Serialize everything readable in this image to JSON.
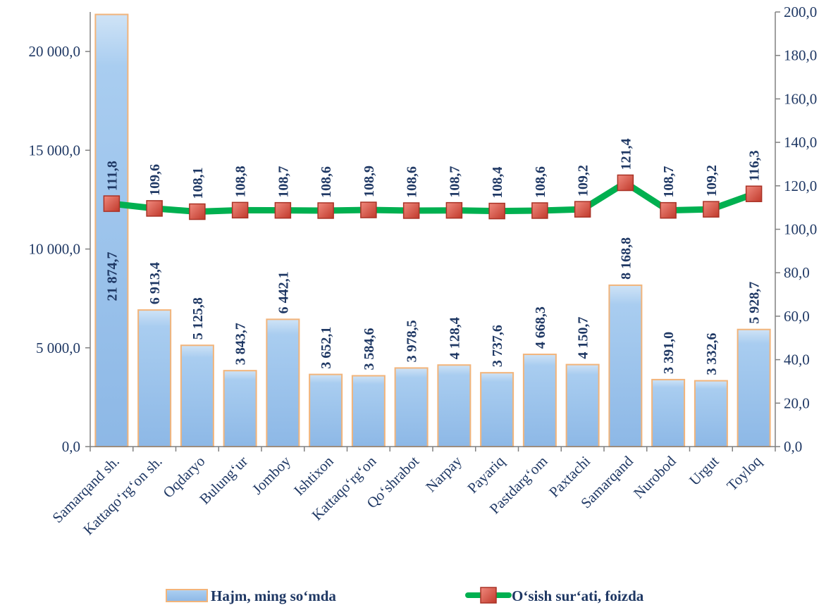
{
  "chart_data": {
    "type": "bar",
    "categories": [
      "Samarqand sh.",
      "Kattaqo‘rg‘on sh.",
      "Oqdaryo",
      "Bulung‘ur",
      "Jomboy",
      "Ishtixon",
      "Kattaqo‘rg‘on",
      "Qo‘shrabot",
      "Narpay",
      "Payariq",
      "Pastdarg‘om",
      "Paxtachi",
      "Samarqand",
      "Nurobod",
      "Urgut",
      "Toyloq"
    ],
    "series": [
      {
        "name": "Hajm, ming so‘mda",
        "type": "bar",
        "axis": "left",
        "values": [
          21874.7,
          6913.4,
          5125.8,
          3843.7,
          6442.1,
          3652.1,
          3584.6,
          3978.5,
          4128.4,
          3737.6,
          4668.3,
          4150.7,
          8168.8,
          3391.0,
          3332.6,
          5928.7
        ],
        "labels": [
          "21 874,7",
          "6 913,4",
          "5 125,8",
          "3 843,7",
          "6 442,1",
          "3 652,1",
          "3 584,6",
          "3 978,5",
          "4 128,4",
          "3 737,6",
          "4 668,3",
          "4 150,7",
          "8 168,8",
          "3 391,0",
          "3 332,6",
          "5 928,7"
        ],
        "color": "#9cc3e6"
      },
      {
        "name": "O‘sish sur‘ati, foizda",
        "type": "line",
        "axis": "right",
        "values": [
          111.8,
          109.6,
          108.1,
          108.8,
          108.7,
          108.6,
          108.9,
          108.6,
          108.7,
          108.4,
          108.6,
          109.2,
          121.4,
          108.7,
          109.2,
          116.3
        ],
        "labels": [
          "111,8",
          "109,6",
          "108,1",
          "108,8",
          "108,7",
          "108,6",
          "108,9",
          "108,6",
          "108,7",
          "108,4",
          "108,6",
          "109,2",
          "121,4",
          "108,7",
          "109,2",
          "116,3"
        ],
        "color": "#00b050",
        "marker_color": "#e03c31"
      }
    ],
    "y_left": {
      "ylim": [
        0,
        22000
      ],
      "ticks": [
        0,
        5000,
        10000,
        15000,
        20000
      ],
      "tick_labels": [
        "0,0",
        "5 000,0",
        "10 000,0",
        "15 000,0",
        "20 000,0"
      ]
    },
    "y_right": {
      "ylim": [
        0,
        200
      ],
      "ticks": [
        0,
        20,
        40,
        60,
        80,
        100,
        120,
        140,
        160,
        180,
        200
      ],
      "tick_labels": [
        "0,0",
        "20,0",
        "40,0",
        "60,0",
        "80,0",
        "100,0",
        "120,0",
        "140,0",
        "160,0",
        "180,0",
        "200,0"
      ]
    },
    "grid": false,
    "legend": "bottom"
  }
}
